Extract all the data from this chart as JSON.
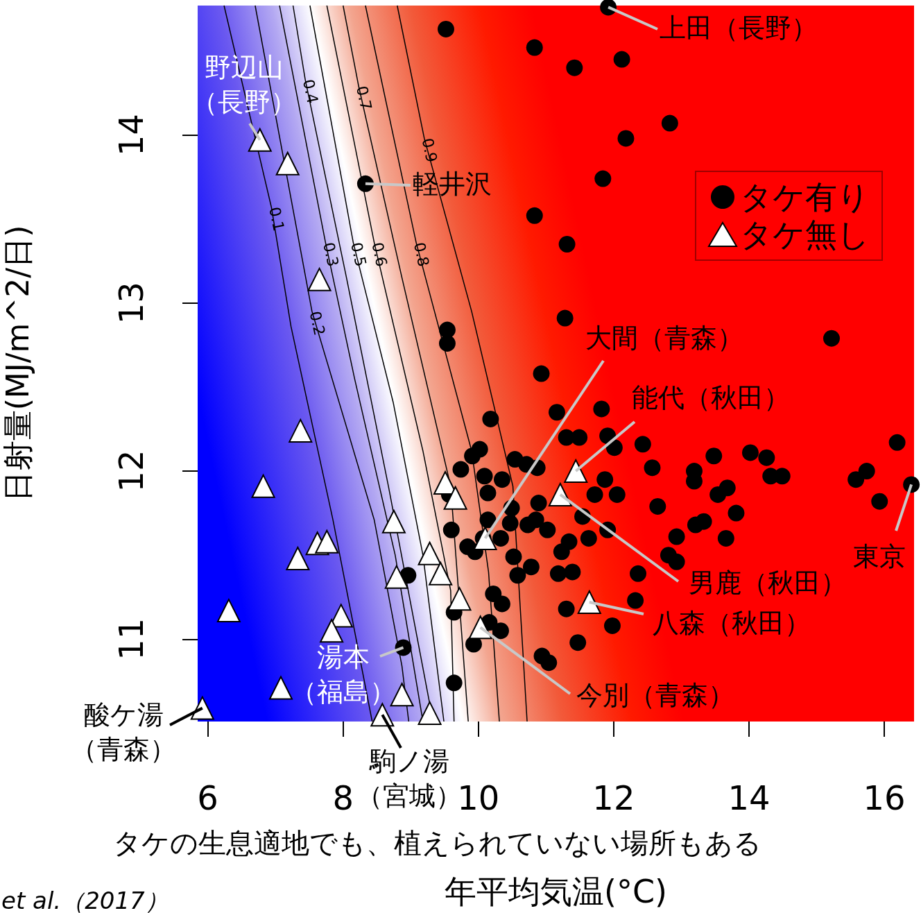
{
  "chart_data": {
    "type": "scatter",
    "xlabel": "年平均気温(°C)",
    "ylabel": "日射量(MJ/m^2/日)",
    "xlim": [
      5.85,
      16.44
    ],
    "ylim": [
      10.51,
      14.77
    ],
    "xticks": [
      6,
      8,
      10,
      12,
      14,
      16
    ],
    "yticks": [
      11,
      12,
      13,
      14
    ],
    "grid": false,
    "legend": "top right",
    "series": [
      {
        "name": "タケ有り",
        "type": "scatter",
        "marker": "circle",
        "color": "#000000",
        "x": [
          9.52,
          11.92,
          10.83,
          11.42,
          12.12,
          12.83,
          12.18,
          8.33,
          11.84,
          10.83,
          11.31,
          11.28,
          9.54,
          9.54,
          15.22,
          10.93,
          11.82,
          11.16,
          10.18,
          10.02,
          9.91,
          9.74,
          10.09,
          10.35,
          10.14,
          10.54,
          10.71,
          10.87,
          11.3,
          11.49,
          11.91,
          12.01,
          12.43,
          12.57,
          13.48,
          14.02,
          14.26,
          14.32,
          14.49,
          16.19,
          15.58,
          15.74,
          15.93,
          16.4,
          13.19,
          13.19,
          13.68,
          13.54,
          13.81,
          12.65,
          13.33,
          13.21,
          13.66,
          12.93,
          12.81,
          12.93,
          11.91,
          11.63,
          11.34,
          11.23,
          11.72,
          12.05,
          11.87,
          11.54,
          11.02,
          10.89,
          10.49,
          10.73,
          10.47,
          10.52,
          10.78,
          10.58,
          11.18,
          11.39,
          11.3,
          11.98,
          12.32,
          12.36,
          11.47,
          10.94,
          11.04,
          10.16,
          10.33,
          10.35,
          10.22,
          9.93,
          9.95,
          9.6,
          9.57,
          9.84,
          10.07,
          10.14,
          10.33,
          8.96,
          9.64,
          8.89,
          9.64,
          10.85
        ],
        "values": [
          14.63,
          14.76,
          14.52,
          14.4,
          14.45,
          14.07,
          13.98,
          13.71,
          13.74,
          13.52,
          13.35,
          12.91,
          12.84,
          12.76,
          12.79,
          12.58,
          12.37,
          12.35,
          12.31,
          12.13,
          12.09,
          12.01,
          11.97,
          11.95,
          11.87,
          12.07,
          12.04,
          12.02,
          12.2,
          12.2,
          12.21,
          12.14,
          12.16,
          12.02,
          12.09,
          12.11,
          12.08,
          11.97,
          11.97,
          12.17,
          11.95,
          12.0,
          11.82,
          11.92,
          12.0,
          11.94,
          11.9,
          11.86,
          11.75,
          11.79,
          11.7,
          11.68,
          11.6,
          11.61,
          11.5,
          11.46,
          11.65,
          11.6,
          11.58,
          11.52,
          11.86,
          11.86,
          11.95,
          11.73,
          11.65,
          11.81,
          11.78,
          11.68,
          11.69,
          11.49,
          11.43,
          11.38,
          11.39,
          11.4,
          11.18,
          11.08,
          11.23,
          11.39,
          10.98,
          10.9,
          10.86,
          11.1,
          11.05,
          11.21,
          11.27,
          10.97,
          11.52,
          11.65,
          11.86,
          11.55,
          11.6,
          11.71,
          11.6,
          11.38,
          11.16,
          10.95,
          10.74,
          11.71
        ]
      },
      {
        "name": "タケ無し",
        "type": "scatter",
        "marker": "triangle",
        "color": "#ffffff",
        "x": [
          6.77,
          7.18,
          7.65,
          7.37,
          6.82,
          6.31,
          7.33,
          7.62,
          7.76,
          7.97,
          7.83,
          7.08,
          5.92,
          8.75,
          8.79,
          8.87,
          8.58,
          9.28,
          9.28,
          9.44,
          9.72,
          9.51,
          9.66,
          10.1,
          10.03,
          11.44,
          11.21,
          11.64
        ],
        "values": [
          13.97,
          13.83,
          13.14,
          12.24,
          11.91,
          11.17,
          11.48,
          11.57,
          11.58,
          11.14,
          11.05,
          10.71,
          10.59,
          11.7,
          11.37,
          10.67,
          10.55,
          10.56,
          11.51,
          11.39,
          11.24,
          11.93,
          11.84,
          11.6,
          11.07,
          12.0,
          11.86,
          11.22
        ]
      },
      {
        "name": "0.1",
        "type": "line",
        "marker": "none",
        "color": "#000000",
        "x": [
          6.24,
          6.94,
          7.23,
          7.85,
          8.43
        ],
        "values": [
          14.77,
          13.57,
          12.86,
          11.71,
          10.51
        ]
      },
      {
        "name": "0.2",
        "type": "line",
        "marker": "none",
        "color": "#000000",
        "x": [
          6.7,
          7.54,
          8.46,
          8.87,
          8.97
        ],
        "values": [
          14.77,
          12.95,
          11.71,
          10.84,
          10.51
        ]
      },
      {
        "name": "0.3",
        "type": "line",
        "marker": "none",
        "color": "#000000",
        "x": [
          7.06,
          7.74,
          8.17,
          8.77,
          9.18
        ],
        "values": [
          14.77,
          13.36,
          12.55,
          11.5,
          10.51
        ]
      },
      {
        "name": "0.4",
        "type": "line",
        "marker": "none",
        "color": "#000000",
        "x": [
          7.26,
          7.44,
          8.05,
          8.67,
          9.33
        ],
        "values": [
          14.77,
          14.33,
          13.15,
          11.91,
          10.51
        ]
      },
      {
        "name": "0.5",
        "type": "line",
        "marker": "none",
        "color": "#000000",
        "x": [
          7.51,
          8.15,
          8.74,
          9.18,
          9.49
        ],
        "values": [
          14.77,
          13.36,
          12.41,
          11.5,
          10.51
        ]
      },
      {
        "name": "0.6",
        "type": "line",
        "marker": "none",
        "color": "#000000",
        "x": [
          7.76,
          8.46,
          9.18,
          9.59,
          9.64
        ],
        "values": [
          14.77,
          13.36,
          12.12,
          11.29,
          10.51
        ]
      },
      {
        "name": "0.7",
        "type": "line",
        "marker": "none",
        "color": "#000000",
        "x": [
          8.0,
          8.23,
          8.87,
          9.59,
          9.85
        ],
        "values": [
          14.77,
          14.29,
          13.15,
          11.91,
          10.51
        ]
      },
      {
        "name": "0.8",
        "type": "line",
        "marker": "none",
        "color": "#000000",
        "x": [
          8.33,
          9.08,
          9.9,
          10.15,
          10.31
        ],
        "values": [
          14.77,
          13.36,
          12.12,
          11.4,
          10.51
        ]
      },
      {
        "name": "0.9",
        "type": "line",
        "marker": "none",
        "color": "#000000",
        "x": [
          8.8,
          9.2,
          9.9,
          10.51,
          10.72
        ],
        "values": [
          14.77,
          13.98,
          12.95,
          11.91,
          10.51
        ]
      }
    ],
    "annotations": [
      {
        "text": "上田（長野）",
        "x": 11.92,
        "y": 14.76
      },
      {
        "text": "野辺山（長野）",
        "x": 6.77,
        "y": 13.97
      },
      {
        "text": "軽井沢",
        "x": 8.33,
        "y": 13.71
      },
      {
        "text": "大間（青森）",
        "x": 10.1,
        "y": 11.6
      },
      {
        "text": "能代（秋田）",
        "x": 11.44,
        "y": 12.0
      },
      {
        "text": "男鹿（秋田）",
        "x": 11.21,
        "y": 11.86
      },
      {
        "text": "八森（秋田）",
        "x": 11.64,
        "y": 11.22
      },
      {
        "text": "東京",
        "x": 16.4,
        "y": 11.92
      },
      {
        "text": "今別（青森）",
        "x": 10.03,
        "y": 11.07
      },
      {
        "text": "湯本（福島）",
        "x": 8.89,
        "y": 10.95
      },
      {
        "text": "駒ノ湯（宮城）",
        "x": 8.58,
        "y": 10.55
      },
      {
        "text": "酸ケ湯（青森）",
        "x": 5.92,
        "y": 10.59
      },
      "タケの生息適地でも、植えられていない場所もある",
      "et al.（2017）"
    ]
  }
}
